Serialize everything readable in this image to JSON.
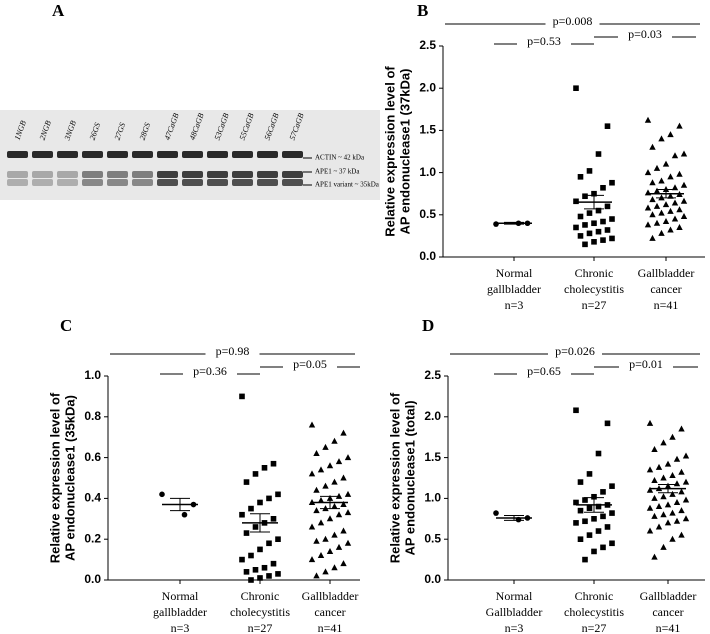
{
  "blot": {
    "panel_label": "A",
    "lanes": [
      "1NGB",
      "2NGB",
      "3NGB",
      "26GS",
      "27GS",
      "28GS",
      "47CaGB",
      "48CaGB",
      "53CaGB",
      "55CaGB",
      "56CaGB",
      "57CaGB"
    ],
    "bands": [
      "ACTIN ~ 42 kDa",
      "APE1 ~ 37 kDa",
      "APE1 variant ~ 35kDa"
    ]
  },
  "chart_data": [
    {
      "type": "dotplot",
      "panel_label": "B",
      "ylabel": [
        "Relative expression level of",
        "AP endonuclease1 (37kDa)"
      ],
      "ylim": [
        0,
        2.5
      ],
      "yticks": [
        {
          "value": 0,
          "label": "0.0"
        },
        0.5,
        {
          "value": 1,
          "label": "1.0"
        },
        1.5,
        {
          "value": 2,
          "label": "2.0"
        },
        2.5
      ],
      "categories": [
        [
          "Normal",
          "gallbladder",
          "n=3"
        ],
        [
          "Chronic",
          "cholecystitis",
          "n=27"
        ],
        [
          "Gallbladder",
          "cancer",
          "n=41"
        ]
      ],
      "annotations": [
        "p=0.008",
        "p=0.53",
        "p=0.03"
      ],
      "color": "#000000",
      "groups": [
        {
          "marker": "circle",
          "mean": 0.4,
          "sem": 0.01,
          "values": [
            0.39,
            0.4,
            0.4
          ]
        },
        {
          "marker": "square",
          "mean": 0.65,
          "sem": 0.08,
          "values": [
            2.0,
            1.55,
            1.22,
            1.02,
            0.95,
            0.88,
            0.82,
            0.75,
            0.72,
            0.66,
            0.6,
            0.55,
            0.52,
            0.48,
            0.45,
            0.42,
            0.4,
            0.38,
            0.35,
            0.32,
            0.3,
            0.28,
            0.25,
            0.22,
            0.2,
            0.18,
            0.15
          ]
        },
        {
          "marker": "triangle",
          "mean": 0.75,
          "sem": 0.05,
          "values": [
            1.62,
            1.55,
            1.45,
            1.4,
            1.3,
            1.22,
            1.2,
            1.1,
            1.05,
            1.0,
            0.98,
            0.95,
            0.9,
            0.88,
            0.85,
            0.82,
            0.8,
            0.78,
            0.76,
            0.74,
            0.72,
            0.7,
            0.68,
            0.66,
            0.64,
            0.62,
            0.6,
            0.58,
            0.56,
            0.54,
            0.52,
            0.5,
            0.48,
            0.45,
            0.42,
            0.4,
            0.38,
            0.35,
            0.32,
            0.28,
            0.22
          ]
        }
      ]
    },
    {
      "type": "dotplot",
      "panel_label": "C",
      "ylabel": [
        "Relative expression level of",
        "AP endonuclease1 (35kDa)"
      ],
      "ylim": [
        0,
        1
      ],
      "yticks": [
        {
          "value": 0,
          "label": "0.0"
        },
        0.2,
        0.4,
        0.6,
        0.8,
        {
          "value": 1,
          "label": "1.0"
        }
      ],
      "categories": [
        [
          "Normal",
          "gallbladder",
          "n=3"
        ],
        [
          "Chronic",
          "cholecystitis",
          "n=27"
        ],
        [
          "Gallbladder",
          "cancer",
          "n=41"
        ]
      ],
      "annotations": [
        "p=0.98",
        "p=0.36",
        "p=0.05"
      ],
      "color": "#000000",
      "groups": [
        {
          "marker": "circle",
          "mean": 0.37,
          "sem": 0.03,
          "values": [
            0.42,
            0.37,
            0.32
          ]
        },
        {
          "marker": "square",
          "mean": 0.28,
          "sem": 0.045,
          "values": [
            0.9,
            0.57,
            0.55,
            0.52,
            0.48,
            0.42,
            0.4,
            0.38,
            0.35,
            0.32,
            0.3,
            0.28,
            0.26,
            0.23,
            0.2,
            0.18,
            0.15,
            0.12,
            0.1,
            0.08,
            0.06,
            0.05,
            0.04,
            0.03,
            0.02,
            0.01,
            0.0
          ]
        },
        {
          "marker": "triangle",
          "mean": 0.38,
          "sem": 0.03,
          "values": [
            0.76,
            0.72,
            0.68,
            0.65,
            0.62,
            0.6,
            0.58,
            0.56,
            0.54,
            0.52,
            0.5,
            0.48,
            0.46,
            0.44,
            0.42,
            0.41,
            0.4,
            0.39,
            0.38,
            0.37,
            0.36,
            0.35,
            0.34,
            0.33,
            0.32,
            0.3,
            0.28,
            0.26,
            0.24,
            0.22,
            0.2,
            0.19,
            0.18,
            0.16,
            0.14,
            0.12,
            0.1,
            0.08,
            0.06,
            0.04,
            0.02
          ]
        }
      ]
    },
    {
      "type": "dotplot",
      "panel_label": "D",
      "ylabel": [
        "Relative expression level of",
        "AP endonuclease1 (total)"
      ],
      "ylim": [
        0,
        2.5
      ],
      "yticks": [
        {
          "value": 0,
          "label": "0.0"
        },
        0.5,
        {
          "value": 1,
          "label": "1.0"
        },
        1.5,
        {
          "value": 2,
          "label": "2.0"
        },
        2.5
      ],
      "categories": [
        [
          "Normal",
          "Gallbladder",
          "n=3"
        ],
        [
          "Chronic",
          "cholecystitis",
          "n=27"
        ],
        [
          "Gallbladder",
          "cancer",
          "n=41"
        ]
      ],
      "annotations": [
        "p=0.026",
        "p=0.65",
        "p=0.01"
      ],
      "color": "#000000",
      "groups": [
        {
          "marker": "circle",
          "mean": 0.76,
          "sem": 0.03,
          "values": [
            0.82,
            0.76,
            0.74
          ]
        },
        {
          "marker": "square",
          "mean": 0.92,
          "sem": 0.09,
          "values": [
            2.08,
            1.92,
            1.55,
            1.3,
            1.2,
            1.15,
            1.08,
            1.02,
            0.98,
            0.95,
            0.92,
            0.9,
            0.88,
            0.85,
            0.82,
            0.78,
            0.75,
            0.72,
            0.7,
            0.65,
            0.6,
            0.55,
            0.5,
            0.45,
            0.4,
            0.35,
            0.25
          ]
        },
        {
          "marker": "triangle",
          "mean": 1.12,
          "sem": 0.05,
          "values": [
            1.92,
            1.85,
            1.75,
            1.68,
            1.6,
            1.52,
            1.48,
            1.42,
            1.38,
            1.35,
            1.32,
            1.28,
            1.25,
            1.22,
            1.2,
            1.18,
            1.15,
            1.12,
            1.1,
            1.08,
            1.05,
            1.02,
            1.0,
            0.98,
            0.95,
            0.92,
            0.9,
            0.88,
            0.85,
            0.82,
            0.8,
            0.78,
            0.75,
            0.72,
            0.7,
            0.65,
            0.6,
            0.55,
            0.5,
            0.4,
            0.28
          ]
        }
      ]
    }
  ]
}
